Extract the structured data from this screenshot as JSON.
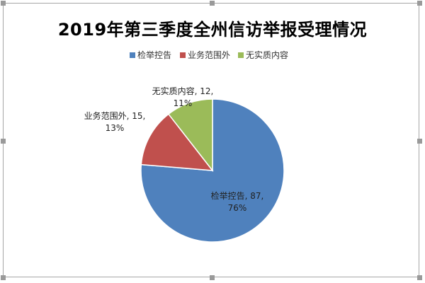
{
  "chart_data": {
    "type": "pie",
    "title": "2019年第三季度全州信访举报受理情况",
    "legend_position": "top",
    "categories": [
      "检举控告",
      "业务范围外",
      "无实质内容"
    ],
    "values": [
      87,
      15,
      12
    ],
    "percent_labels": [
      "76%",
      "13%",
      "11%"
    ],
    "colors": [
      "#4f81bd",
      "#c0504d",
      "#9bbb59"
    ],
    "start_angle_deg": 0,
    "direction": "clockwise"
  }
}
